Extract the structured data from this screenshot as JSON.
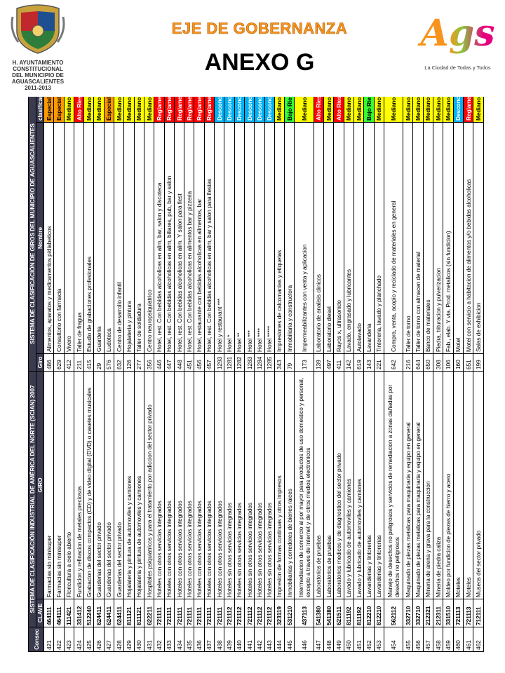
{
  "header": {
    "logo_left_lines": [
      "H. AYUNTAMIENTO",
      "CONSTITUCIONAL",
      "DEL MUNICIPIO DE",
      "AGUASCALIENTES",
      "2011-2013"
    ],
    "subtitle": "EJE DE GOBERNANZA",
    "title": "ANEXO G",
    "logo_right_text": "Ags",
    "logo_right_tagline": "La Ciudad de Todas y Todos"
  },
  "table": {
    "group_headers": [
      "SISTEMA DE CLASIFICACIÓN INDUSTRIAL DE AMÉRICA DEL NORTE (SCIAN) 2007",
      "SISTEMA DE CLASIFICACIÓN DE GIROS DEL MUNICIPIO DE AGUASCALIENTES"
    ],
    "columns": [
      "Consec",
      "CLAVE",
      "GIRO",
      "Giro",
      "Nombre",
      "clasificación"
    ],
    "clasificacion_colors": {
      "Especial": {
        "bg": "#ff9900",
        "fg": "#000000"
      },
      "Mediano Riesgo": {
        "bg": "#ffff00",
        "fg": "#000000"
      },
      "Alto Riesgo": {
        "bg": "#ff0000",
        "fg": "#ffffff"
      },
      "Reglamentado": {
        "bg": "#ff0000",
        "fg": "#ffffff"
      },
      "Desconcentrado": {
        "bg": "#00b0f0",
        "fg": "#ffffff"
      },
      "Bajo Riesgo": {
        "bg": "#33ff33",
        "fg": "#000000"
      }
    },
    "rows": [
      [
        421,
        464111,
        "Farmacias sin minisuper",
        486,
        "Alimentos, aparatos y medicamentos p/diabeticos",
        "Especial"
      ],
      [
        422,
        464111,
        "Farmacias sin minisuper",
        629,
        "Consultorio con farmacia",
        "Especial"
      ],
      [
        423,
        111421,
        "Floricultura a cielo abierto",
        412,
        "Vivero",
        "Mediano Riesgo"
      ],
      [
        424,
        331412,
        "Fundicion y refinacion de metales preciosos",
        211,
        "Taller de fragua",
        "Alto Riesgo"
      ],
      [
        425,
        512240,
        "Grabacion de discos compactos (CD) y de video digital (DVD) o casetes musicales",
        415,
        "Estudio de grabaciones profesionales",
        "Mediano Riesgo"
      ],
      [
        426,
        624411,
        "Guarderias del sector privado",
        29,
        "Guarderia",
        "Mediano Riesgo"
      ],
      [
        427,
        624411,
        "Guarderias del sector privado",
        576,
        "Ludoteca",
        "Especial"
      ],
      [
        428,
        624411,
        "Guarderias del sector privado",
        632,
        "Centro de desarrollo infantil",
        "Mediano Riesgo"
      ],
      [
        429,
        811121,
        "Hojalateria y pintura de automoviles y camiones",
        126,
        "Hojalateria y pintura",
        "Mediano Riesgo"
      ],
      [
        430,
        811121,
        "Hojalateria y pintura de automoviles y camiones",
        277,
        "Taller de soldadura",
        "Mediano Riesgo"
      ],
      [
        431,
        622211,
        "Hospitales psiquiatricos y para el tratamiento por adiccion del sector privado",
        356,
        "Centro neuropsiquiatrico",
        "Mediano Riesgo"
      ],
      [
        432,
        721111,
        "Hoteles con otros servicios integrados",
        446,
        "Hotel, rest. Con bebidas alcoholicas en alim, bar, salon y discoteca",
        "Reglamentado"
      ],
      [
        433,
        721111,
        "Hoteles con otros servicios integrados",
        447,
        "Hotel, rest. Con bebidas alcoholicas en alim, billares, pub, bar y salon",
        "Reglamentado"
      ],
      [
        434,
        721111,
        "Hoteles con otros servicios integrados",
        448,
        "Hotel, rest. Con bebidas alcoholicas en alim. Y salon para fiest",
        "Reglamentado"
      ],
      [
        435,
        721111,
        "Hoteles con otros servicios integrados",
        451,
        "Hotel, rest. Con bebidas alcoholicas en alimentos bar y pizzeria",
        "Reglamentado"
      ],
      [
        436,
        721111,
        "Hoteles con otros servicios integrados",
        456,
        "Hotel, restaurante con bebidas alcoholicas en alimentos, bar",
        "Reglamentado"
      ],
      [
        437,
        721111,
        "Hoteles con otros servicios integrados",
        457,
        "Hotel, rest. Con bebidas alcoholicas en alim, bar y salon para fiestas",
        "Reglamentado"
      ],
      [
        438,
        721111,
        "Hoteles con otros servicios integrados",
        1293,
        "Hotel y restaurant ***",
        "Desconcentrado"
      ],
      [
        439,
        721112,
        "Hoteles sin otros servicios integrados",
        1281,
        "Hotel *",
        "Desconcentrado"
      ],
      [
        440,
        721112,
        "Hoteles sin otros servicios integrados",
        1282,
        "Hotel **",
        "Desconcentrado"
      ],
      [
        441,
        721112,
        "Hoteles sin otros servicios integrados",
        1283,
        "Hotel ***",
        "Desconcentrado"
      ],
      [
        442,
        721112,
        "Hoteles sin otros servicios integrados",
        1284,
        "Hotel ****",
        "Desconcentrado"
      ],
      [
        443,
        721112,
        "Hoteles sin otros servicios integrados",
        1285,
        "Hotel *****",
        "Desconcentrado"
      ],
      [
        444,
        323119,
        "Impresion de formas continuas y otros impresos",
        343,
        "Impresiones de calcomanias y etiquetas",
        "Mediano Riesgo"
      ],
      [
        445,
        531210,
        "Inmobiliarias y corredores de bienes raices",
        79,
        "Inmobiliaria y constructora",
        "Bajo Riesgo"
      ],
      [
        446,
        437113,
        "Intermediacion de comercio al por mayor para productos de uso domestico y personal, excepto a traves de Internet y de otros medios electronicos",
        173,
        "Impermeabilizantes con venta y aplicacion",
        "Mediano Riesgo"
      ],
      [
        447,
        541380,
        "Laboratorios de pruebas",
        139,
        "Laboratorio de analisis clinicos",
        "Alto Riesgo"
      ],
      [
        448,
        541380,
        "Laboratorios de pruebas",
        497,
        "Laboratorio diesel",
        "Mediano Riesgo"
      ],
      [
        449,
        621511,
        "Laboratorios medicos y de diagnostico del sector privado",
        411,
        "Rayos x, ultrasonido",
        "Alto Riesgo"
      ],
      [
        450,
        811192,
        "Lavado y lubricado de automoviles y camiones",
        142,
        "Lavado, engrasado y lubricantes",
        "Mediano Riesgo"
      ],
      [
        451,
        811192,
        "Lavado y lubricado de automoviles y camiones",
        619,
        "Autolavado",
        "Mediano Riesgo"
      ],
      [
        452,
        812210,
        "Lavanderias y tintorerias",
        143,
        "Lavanderia",
        "Bajo Riesgo"
      ],
      [
        453,
        812210,
        "Lavanderias y tintorerias",
        221,
        "Tintoreria, lavado y planchado",
        "Mediano Riesgo"
      ],
      [
        454,
        562112,
        "Manejo de desechos no peligrosos y servicios de remediacion a zonas dañadas por desechos no peligrosos",
        642,
        "Compra, venta, acopio y reciclado de materiales en general",
        "Mediano Riesgo"
      ],
      [
        455,
        332710,
        "Maquinado de piezas metalicas para maquinaria y equipo en general",
        216,
        "Taller de torno",
        "Mediano Riesgo"
      ],
      [
        456,
        332710,
        "Maquinado de piezas metalicas para maquinaria y equipo en general",
        644,
        "Taller de torno con almacen de material",
        "Mediano Riesgo"
      ],
      [
        457,
        212321,
        "Mineria de arena y grava para la construccion",
        650,
        "Banco de materiales",
        "Mediano Riesgo"
      ],
      [
        458,
        212311,
        "Mineria de piedra caliza",
        308,
        "Piedra, trituracion y pulverizacion",
        "Mediano Riesgo"
      ],
      [
        459,
        331510,
        "Moldeo por fundicion de piezas de hierro y acero",
        106,
        "Fab., elab. Y vta. Prod. metalicos (sin fundicion)",
        "Mediano Riesgo"
      ],
      [
        460,
        721113,
        "Moteles",
        160,
        "Motel",
        "Desconcentrado"
      ],
      [
        461,
        721113,
        "Moteles",
        651,
        "Motel con servicio a habitacion de alimentos y/o bebidas alcoholicas",
        "Reglamentado"
      ],
      [
        462,
        712111,
        "Museos del sector privado",
        199,
        "Salas de exhibicion",
        "Mediano Riesgo"
      ]
    ]
  }
}
